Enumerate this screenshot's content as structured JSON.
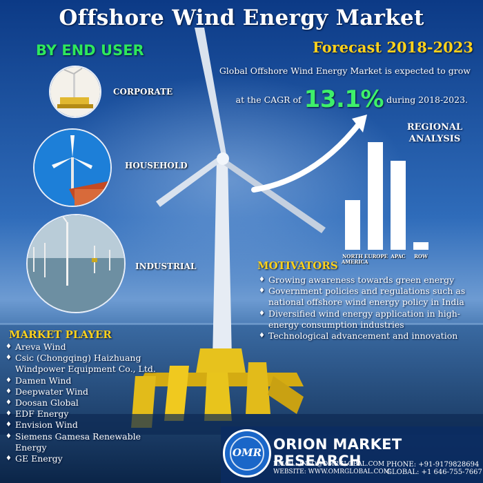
{
  "title": "Offshore Wind Energy Market",
  "subtitle": "Forecast 2018-2023",
  "by_end_user": {
    "heading": "BY END USER",
    "items": [
      {
        "label": "CORPORATE",
        "icon": "corporate-turbine-icon"
      },
      {
        "label": "HOUSEHOLD",
        "icon": "household-turbine-icon"
      },
      {
        "label": "INDUSTRIAL",
        "icon": "offshore-wind-farm-icon"
      }
    ]
  },
  "growth": {
    "text_line1": "Global Offshore Wind Energy Market is expected to grow",
    "text_pre": "at the CAGR of",
    "cagr": "13.1%",
    "text_post": "during 2018-2023."
  },
  "regional": {
    "title_line1": "REGIONAL",
    "title_line2": "ANALYSIS"
  },
  "chart_data": {
    "type": "bar",
    "categories": [
      "NORTH AMERICA",
      "EUROPE",
      "APAC",
      "ROW"
    ],
    "series": [
      {
        "values": [
          0.46,
          1.0,
          0.83,
          0.07
        ]
      }
    ],
    "title": "REGIONAL ANALYSIS",
    "xlabel": "",
    "ylabel": "",
    "grid": false,
    "color": "#ffffff"
  },
  "motivators": {
    "heading": "MOTIVATORS",
    "items": [
      "Growing awareness towards green energy",
      "Government policies and regulations such as national offshore wind energy policy in India",
      "Diversified wind energy application in high-energy consumption industries",
      "Technological advancement and innovation"
    ]
  },
  "market_player": {
    "heading": "MARKET PLAYER",
    "items": [
      "Areva Wind",
      "Csic (Chongqing) Haizhuang Windpower Equipment Co., Ltd.",
      "Damen Wind",
      "Deepwater Wind",
      "Doosan Global",
      "EDF Energy",
      "Envision Wind",
      "Siemens Gamesa Renewable Energy",
      "GE Energy"
    ]
  },
  "footer": {
    "logo_text": "OMR",
    "company": "ORION MARKET RESEARCH",
    "email": "EMAIL: INFO@OMRGLOBAL.COM",
    "website": "WEBSITE: WWW.OMRGLOBAL.COM",
    "phone": "PHONE: +91-9179828694",
    "global": "GLOBAL: +1 646-755-7667"
  },
  "colors": {
    "accent_yellow": "#ffd21c",
    "accent_green": "#3ef06a",
    "footer_blue": "#0b3a7a"
  }
}
